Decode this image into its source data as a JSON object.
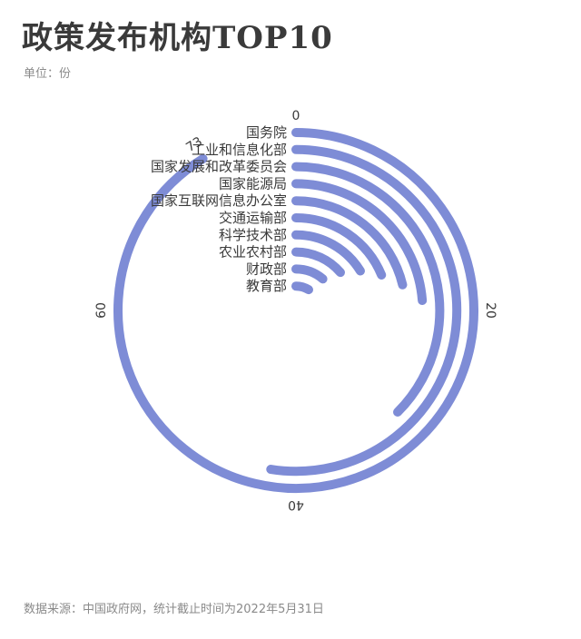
{
  "header": {
    "title": "政策发布机构TOP10",
    "unit": "单位：份"
  },
  "footer": {
    "source": "数据来源：中国政府网，统计截止时间为2022年5月31日"
  },
  "chart_data": {
    "type": "radial-bar",
    "title": "政策发布机构TOP10",
    "unit": "份",
    "max": 73,
    "ticks": [
      {
        "value": 0,
        "label": "0"
      },
      {
        "value": 20,
        "label": "20"
      },
      {
        "value": 40,
        "label": "40"
      },
      {
        "value": 60,
        "label": "60"
      },
      {
        "value": 73,
        "label": "73"
      }
    ],
    "categories": [
      "国务院",
      "工业和信息化部",
      "国家发展和改革委员会",
      "国家能源局",
      "国家互联网信息办公室",
      "交通运输部",
      "科学技术部",
      "农业农村部",
      "财政部",
      "教育部"
    ],
    "values": [
      73,
      42,
      30,
      19,
      17,
      15,
      13,
      11,
      9,
      7
    ],
    "color": "#7e8cd6"
  }
}
